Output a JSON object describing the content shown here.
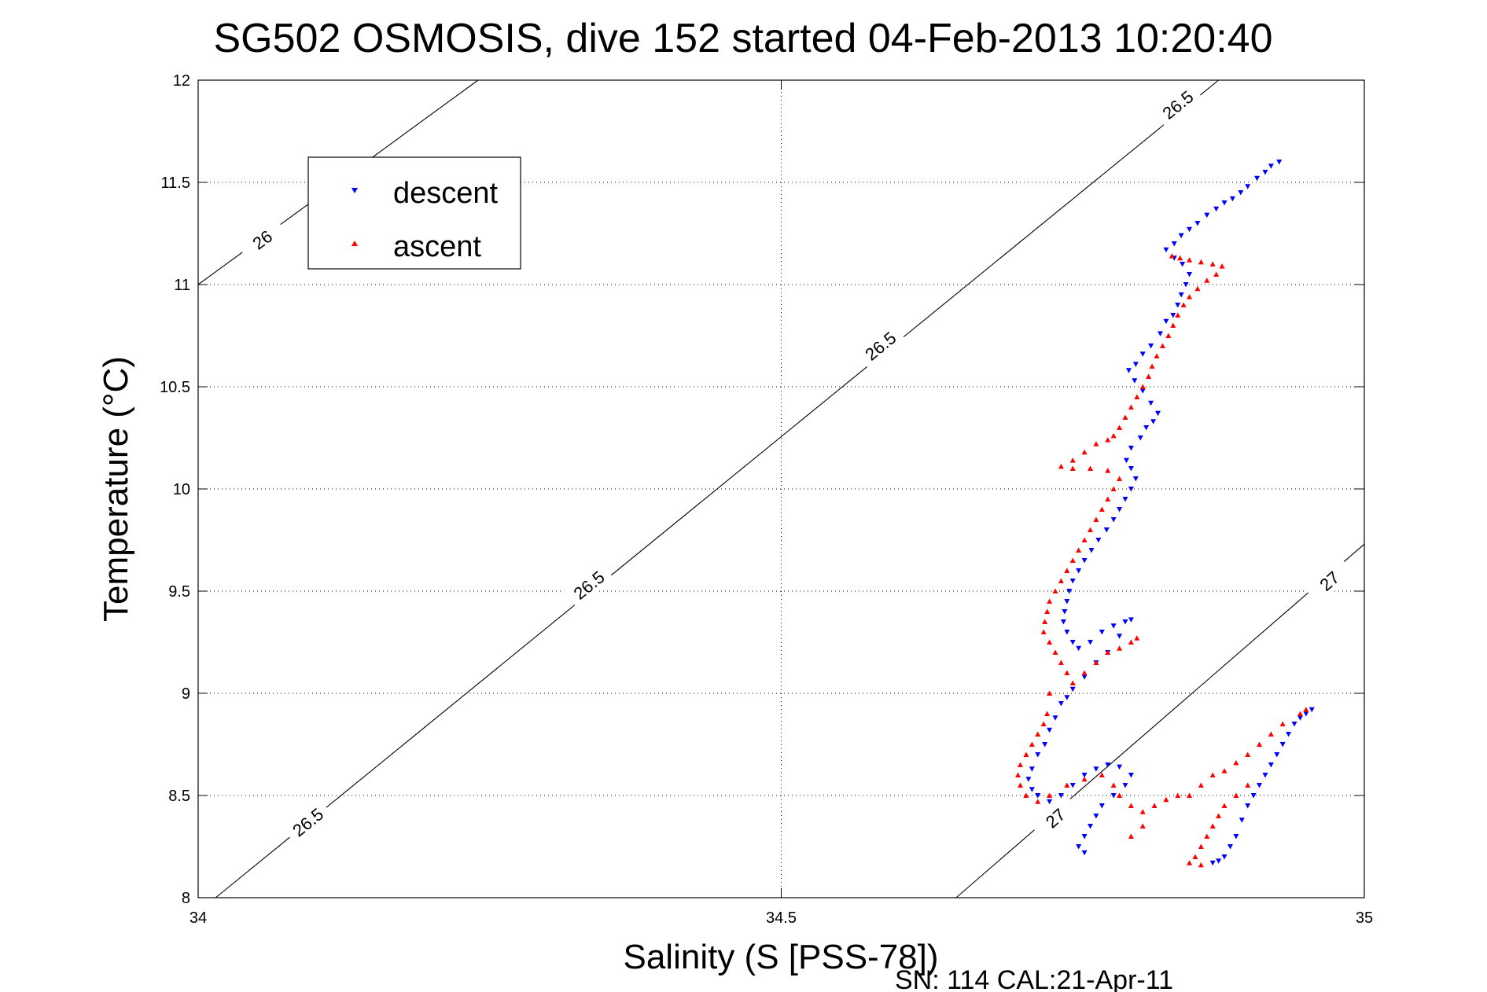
{
  "chart_data": {
    "type": "scatter",
    "title": "SG502 OSMOSIS, dive 152 started 04-Feb-2013 10:20:40",
    "xlabel": "Salinity (S [PSS-78])",
    "ylabel": "Temperature (°C)",
    "xlim": [
      34,
      35
    ],
    "ylim": [
      8,
      12
    ],
    "x_ticks": [
      34,
      34.5,
      35
    ],
    "x_tick_labels": [
      "34",
      "34.5",
      "35"
    ],
    "y_ticks": [
      8,
      8.5,
      9,
      9.5,
      10,
      10.5,
      11,
      11.5,
      12
    ],
    "y_tick_labels": [
      "8",
      "8.5",
      "9",
      "9.5",
      "10",
      "10.5",
      "11",
      "11.5",
      "12"
    ],
    "grid": true,
    "legend_position": "top-left",
    "footer_text": "SN: 114  CAL:21-Apr-11",
    "density_contours": [
      {
        "label": "26",
        "points": [
          [
            34.0,
            11.0
          ],
          [
            34.24,
            12.0
          ]
        ],
        "label_positions": [
          [
            34.055,
            11.22
          ]
        ]
      },
      {
        "label": "26.5",
        "points": [
          [
            34.015,
            8.0
          ],
          [
            34.875,
            12.0
          ]
        ],
        "label_positions": [
          [
            34.094,
            8.37
          ],
          [
            34.335,
            9.53
          ],
          [
            34.585,
            10.7
          ],
          [
            34.84,
            11.88
          ]
        ]
      },
      {
        "label": "27",
        "points": [
          [
            34.65,
            8.0
          ],
          [
            35.0,
            9.73
          ]
        ],
        "label_positions": [
          [
            34.735,
            8.39
          ],
          [
            34.97,
            9.55
          ]
        ]
      }
    ],
    "series": [
      {
        "name": "descent",
        "color": "#0000ff",
        "marker": "triangle-down",
        "points": [
          [
            34.927,
            11.6
          ],
          [
            34.92,
            11.58
          ],
          [
            34.915,
            11.55
          ],
          [
            34.908,
            11.52
          ],
          [
            34.9,
            11.48
          ],
          [
            34.894,
            11.45
          ],
          [
            34.887,
            11.42
          ],
          [
            34.88,
            11.4
          ],
          [
            34.873,
            11.37
          ],
          [
            34.865,
            11.34
          ],
          [
            34.857,
            11.3
          ],
          [
            34.85,
            11.27
          ],
          [
            34.843,
            11.24
          ],
          [
            34.837,
            11.2
          ],
          [
            34.83,
            11.17
          ],
          [
            34.837,
            11.13
          ],
          [
            34.844,
            11.1
          ],
          [
            34.85,
            11.05
          ],
          [
            34.847,
            11.0
          ],
          [
            34.843,
            10.95
          ],
          [
            34.84,
            10.9
          ],
          [
            34.836,
            10.85
          ],
          [
            34.83,
            10.82
          ],
          [
            34.825,
            10.76
          ],
          [
            34.817,
            10.7
          ],
          [
            34.81,
            10.66
          ],
          [
            34.804,
            10.61
          ],
          [
            34.798,
            10.58
          ],
          [
            34.803,
            10.53
          ],
          [
            34.81,
            10.48
          ],
          [
            34.817,
            10.42
          ],
          [
            34.823,
            10.37
          ],
          [
            34.819,
            10.33
          ],
          [
            34.813,
            10.3
          ],
          [
            34.808,
            10.25
          ],
          [
            34.8,
            10.2
          ],
          [
            34.796,
            10.14
          ],
          [
            34.8,
            10.1
          ],
          [
            34.804,
            10.05
          ],
          [
            34.8,
            10.0
          ],
          [
            34.795,
            9.95
          ],
          [
            34.79,
            9.9
          ],
          [
            34.785,
            9.85
          ],
          [
            34.779,
            9.8
          ],
          [
            34.772,
            9.75
          ],
          [
            34.766,
            9.7
          ],
          [
            34.76,
            9.65
          ],
          [
            34.755,
            9.6
          ],
          [
            34.75,
            9.55
          ],
          [
            34.747,
            9.5
          ],
          [
            34.745,
            9.45
          ],
          [
            34.743,
            9.4
          ],
          [
            34.742,
            9.35
          ],
          [
            34.745,
            9.3
          ],
          [
            34.75,
            9.25
          ],
          [
            34.755,
            9.22
          ],
          [
            34.765,
            9.25
          ],
          [
            34.775,
            9.3
          ],
          [
            34.785,
            9.33
          ],
          [
            34.795,
            9.35
          ],
          [
            34.8,
            9.36
          ],
          [
            34.79,
            9.28
          ],
          [
            34.78,
            9.2
          ],
          [
            34.77,
            9.15
          ],
          [
            34.76,
            9.08
          ],
          [
            34.75,
            9.02
          ],
          [
            34.745,
            8.98
          ],
          [
            34.74,
            8.95
          ],
          [
            34.735,
            8.88
          ],
          [
            34.73,
            8.82
          ],
          [
            34.726,
            8.75
          ],
          [
            34.72,
            8.7
          ],
          [
            34.715,
            8.63
          ],
          [
            34.712,
            8.58
          ],
          [
            34.715,
            8.53
          ],
          [
            34.72,
            8.5
          ],
          [
            34.73,
            8.47
          ],
          [
            34.74,
            8.5
          ],
          [
            34.75,
            8.55
          ],
          [
            34.76,
            8.6
          ],
          [
            34.77,
            8.63
          ],
          [
            34.78,
            8.65
          ],
          [
            34.79,
            8.64
          ],
          [
            34.8,
            8.6
          ],
          [
            34.795,
            8.55
          ],
          [
            34.785,
            8.5
          ],
          [
            34.775,
            8.45
          ],
          [
            34.77,
            8.4
          ],
          [
            34.765,
            8.35
          ],
          [
            34.76,
            8.3
          ],
          [
            34.755,
            8.25
          ],
          [
            34.76,
            8.22
          ],
          [
            34.87,
            8.17
          ],
          [
            34.875,
            8.18
          ],
          [
            34.88,
            8.2
          ],
          [
            34.885,
            8.25
          ],
          [
            34.89,
            8.3
          ],
          [
            34.895,
            8.38
          ],
          [
            34.9,
            8.45
          ],
          [
            34.905,
            8.5
          ],
          [
            34.91,
            8.55
          ],
          [
            34.915,
            8.6
          ],
          [
            34.92,
            8.65
          ],
          [
            34.925,
            8.7
          ],
          [
            34.93,
            8.75
          ],
          [
            34.935,
            8.8
          ],
          [
            34.94,
            8.85
          ],
          [
            34.945,
            8.88
          ],
          [
            34.95,
            8.9
          ],
          [
            34.955,
            8.92
          ]
        ]
      },
      {
        "name": "ascent",
        "color": "#ff0000",
        "marker": "triangle-up",
        "points": [
          [
            34.835,
            11.14
          ],
          [
            34.842,
            11.13
          ],
          [
            34.85,
            11.12
          ],
          [
            34.86,
            11.11
          ],
          [
            34.87,
            11.1
          ],
          [
            34.878,
            11.09
          ],
          [
            34.873,
            11.05
          ],
          [
            34.865,
            11.02
          ],
          [
            34.857,
            10.98
          ],
          [
            34.85,
            10.94
          ],
          [
            34.845,
            10.9
          ],
          [
            34.84,
            10.85
          ],
          [
            34.836,
            10.8
          ],
          [
            34.832,
            10.75
          ],
          [
            34.827,
            10.7
          ],
          [
            34.822,
            10.65
          ],
          [
            34.818,
            10.6
          ],
          [
            34.815,
            10.55
          ],
          [
            34.81,
            10.5
          ],
          [
            34.805,
            10.45
          ],
          [
            34.8,
            10.4
          ],
          [
            34.795,
            10.35
          ],
          [
            34.79,
            10.3
          ],
          [
            34.785,
            10.26
          ],
          [
            34.78,
            10.24
          ],
          [
            34.77,
            10.22
          ],
          [
            34.76,
            10.18
          ],
          [
            34.75,
            10.14
          ],
          [
            34.74,
            10.11
          ],
          [
            34.75,
            10.1
          ],
          [
            34.765,
            10.1
          ],
          [
            34.78,
            10.09
          ],
          [
            34.79,
            10.05
          ],
          [
            34.785,
            10.0
          ],
          [
            34.78,
            9.95
          ],
          [
            34.775,
            9.9
          ],
          [
            34.77,
            9.85
          ],
          [
            34.765,
            9.8
          ],
          [
            34.76,
            9.75
          ],
          [
            34.755,
            9.7
          ],
          [
            34.75,
            9.65
          ],
          [
            34.745,
            9.6
          ],
          [
            34.74,
            9.55
          ],
          [
            34.735,
            9.5
          ],
          [
            34.73,
            9.45
          ],
          [
            34.728,
            9.4
          ],
          [
            34.726,
            9.35
          ],
          [
            34.725,
            9.3
          ],
          [
            34.73,
            9.25
          ],
          [
            34.735,
            9.2
          ],
          [
            34.74,
            9.15
          ],
          [
            34.745,
            9.1
          ],
          [
            34.75,
            9.05
          ],
          [
            34.76,
            9.1
          ],
          [
            34.77,
            9.15
          ],
          [
            34.78,
            9.2
          ],
          [
            34.79,
            9.22
          ],
          [
            34.8,
            9.25
          ],
          [
            34.805,
            9.27
          ],
          [
            34.73,
            9.0
          ],
          [
            34.728,
            8.9
          ],
          [
            34.725,
            8.85
          ],
          [
            34.72,
            8.8
          ],
          [
            34.715,
            8.75
          ],
          [
            34.71,
            8.7
          ],
          [
            34.705,
            8.65
          ],
          [
            34.703,
            8.6
          ],
          [
            34.705,
            8.55
          ],
          [
            34.71,
            8.5
          ],
          [
            34.72,
            8.47
          ],
          [
            34.73,
            8.5
          ],
          [
            34.745,
            8.55
          ],
          [
            34.76,
            8.58
          ],
          [
            34.775,
            8.6
          ],
          [
            34.785,
            8.55
          ],
          [
            34.79,
            8.5
          ],
          [
            34.8,
            8.45
          ],
          [
            34.81,
            8.42
          ],
          [
            34.82,
            8.45
          ],
          [
            34.83,
            8.48
          ],
          [
            34.84,
            8.5
          ],
          [
            34.85,
            8.5
          ],
          [
            34.86,
            8.55
          ],
          [
            34.87,
            8.6
          ],
          [
            34.88,
            8.62
          ],
          [
            34.89,
            8.66
          ],
          [
            34.9,
            8.7
          ],
          [
            34.91,
            8.75
          ],
          [
            34.92,
            8.8
          ],
          [
            34.93,
            8.85
          ],
          [
            34.945,
            8.9
          ],
          [
            34.95,
            8.92
          ],
          [
            34.9,
            8.55
          ],
          [
            34.89,
            8.5
          ],
          [
            34.88,
            8.45
          ],
          [
            34.875,
            8.4
          ],
          [
            34.87,
            8.35
          ],
          [
            34.865,
            8.3
          ],
          [
            34.86,
            8.25
          ],
          [
            34.855,
            8.2
          ],
          [
            34.85,
            8.17
          ],
          [
            34.86,
            8.16
          ],
          [
            34.8,
            8.3
          ],
          [
            34.81,
            8.35
          ]
        ]
      }
    ]
  }
}
